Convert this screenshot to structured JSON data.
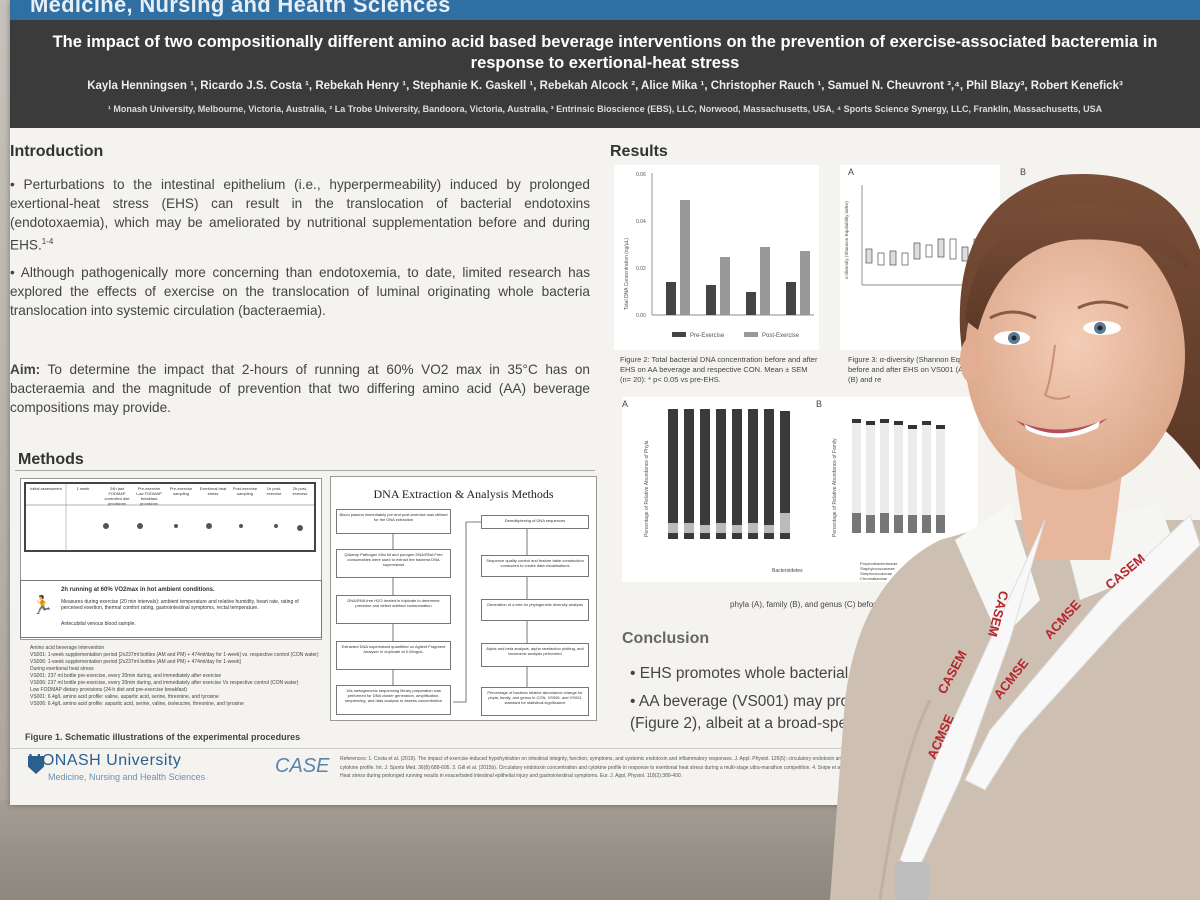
{
  "poster": {
    "department": "Medicine, Nursing and Health Sciences",
    "title": "The impact of two compositionally different amino acid based beverage interventions on the prevention of exercise-associated bacteremia in response to exertional-heat stress",
    "authors": "Kayla Henningsen ¹, Ricardo J.S. Costa ¹, Rebekah Henry ¹, Stephanie K. Gaskell ¹, Rebekah Alcock ², Alice Mika ¹, Christopher Rauch ¹, Samuel N. Cheuvront ³,⁴, Phil Blazy³, Robert Kenefick³",
    "affiliations": "¹ Monash University, Melbourne, Victoria, Australia, ² La Trobe University, Bandoora, Victoria, Australia, ³ Entrinsic Bioscience (EBS), LLC, Norwood, Massachusetts, USA, ⁴ Sports Science Synergy, LLC, Franklin, Massachusetts, USA",
    "introduction": {
      "heading": "Introduction",
      "bullet1": "• Perturbations to the intestinal epithelium (i.e., hyperpermeability) induced by prolonged exertional-heat stress (EHS) can result in the translocation of bacterial endotoxins (endotoxaemia), which may be ameliorated by nutritional supplementation before and during EHS.",
      "bullet1_ref": "1-4",
      "bullet2": "• Although pathogenically more concerning than endotoxemia, to date, limited research has explored the effects of exercise on the translocation of luminal originating whole bacteria translocation into systemic circulation (bacteraemia).",
      "aim_label": "Aim:",
      "aim_text": " To determine the impact that 2-hours of running at 60% VO2 max in 35°C has on bacteraemia and the magnitude of prevention that two differing amino acid (AA) beverage compositions may provide."
    },
    "methods": {
      "heading": "Methods",
      "schematic_headers": [
        "Initial assessment",
        "1 week",
        "24h last FODMAP controlled diet provisions",
        "Pre-exercise Low FODMAP breakfast provisions",
        "Pre-exercise sampling",
        "Exertional heat stress",
        "Post-exercise sampling",
        "1h post-exercise",
        "2h post-exercise"
      ],
      "run_text": "2h running at 60% VO2max in hot ambient conditions.",
      "run_measures": "Measures during exercise (20 min intervals): ambient temperature and relative humidity, heart rate, rating of perceived exertion, thermal comfort rating, gastrointestinal symptoms, rectal temperature.",
      "run_blood": "Antecubital venous blood sample.",
      "beverage_lines": [
        "Amino acid beverage intervention",
        "VS001: 1-week supplementation period [2x237ml bottles (AM and PM) + 474ml/day for 1-week]  vs. respective control (CON water)",
        "VS006: 1-week supplementation period [2x237ml bottles (AM and PM) + 474ml/day for 1-week]",
        "During exertional heat stress",
        "VS001: 237 ml bottle pre-exercise, every 20min during, and immediately after exercise",
        "VS006: 237 ml bottle pre-exercise, every 20min during, and immediately after exercise  Vs respective control (CON water)",
        "Low FODMAP dietary provisions (24-h diet and pre-exercise breakfast)",
        "VS001: 6.4g/L amino acid profile: valine, aspartic acid, serine, threonine, and tyrosine",
        "VS006: 6.4g/L amino acid profile: aspartic acid, serine, valine, isoleucine, threonine, and tyrosine"
      ],
      "figure1_caption": "Figure 1. Schematic illustrations of the experimental procedures"
    },
    "dna_box": {
      "title": "DNA Extraction & Analysis Methods",
      "left_steps": [
        "Blood plasma immediately pre and post-exercise was utilised for the DNA extraction",
        "QIAamp Pathogen Mini kit and purogen DNA/RNA Free consumables were used to extract the bacteria DNA supernatant",
        "DNA/RNA free H2O treated in triplicate to determine precision and detect artefact contamination",
        "Extracted DNA supernatant quantified on Agilent Fragment Analyser in duplicate at 0.06ng/uL",
        "16s metagenomic sequencing library preparation was performed for DNA cluster generation, amplification, sequencing, and data analysis to assess concentration"
      ],
      "right_steps": [
        "Demultiplexing of DNA sequences",
        "Sequence quality control and feature table construction conducted to create data visualisations",
        "Generation of a tree for phylogenetic diversity analysis",
        "Alpha and beta analysis, alpha rarefaction plotting, and taxonomic analysis performed",
        "Percentage of bacteria relative abundance change for phyla, family, and genus in CON, VS006, and VS001 standard for statistical significance"
      ]
    },
    "results": {
      "heading": "Results",
      "fig2_ylabel": "Total DNA Concentration (ng/µL)",
      "fig2_yticks": [
        "0.06",
        "0.04",
        "0.02",
        "0.00"
      ],
      "fig2_legend": [
        "Pre-Exercise",
        "Post-Exercise"
      ],
      "fig2_caption": "Figure 2: Total bacterial DNA concentration before and after EHS on AA beverage and respective CON. Mean ± SEM (n= 20): * p< 0.05 vs pre-EHS.",
      "fig3_caption": "Figure 3: α-diversity (Shannon Equitability) before and after EHS on VS001 (A) and VS006 (B) and re",
      "fig3_label_a": "A",
      "fig3_label_b": "B",
      "fig3_ylabel": "α-diversity (Shannon Equitability index)",
      "fig3_yticks": [
        "0.4",
        "0.3",
        "0.2",
        "0.1",
        "0.0"
      ],
      "fig4_label_a": "A",
      "fig4_label_b": "B",
      "fig4_ylabel_a": "Percentage of Relative Abundance of Phyla",
      "fig4_ylabel_b": "Percentage of Relative Abundance of Family",
      "fig4_legend_a": [
        "Bacteroidetes"
      ],
      "fig4_legend_b": [
        "Propionibacteriaceae",
        "Staphylococcaceae",
        "Streptococcaceae",
        "Chromatiaceae",
        "Moraxellaceae"
      ],
      "fig4_caption": "phyla (A), family (B), and genus (C) before and afte"
    },
    "conclusion": {
      "heading": "Conclusion",
      "bullet1": "• EHS promotes whole bacterial translocati",
      "bullet2a": "• AA beverage (VS001) may provide",
      "bullet2b": "(Figure 2), albeit at a broad-spectrum"
    },
    "footer": {
      "university": "MONASH University",
      "faculty": "Medicine, Nursing and Health Sciences",
      "partner": "CASE",
      "references": "References: 1. Costa et al. (2019). The impact of exercise-induced hypohydration on intestinal integrity, function, symptoms, and systemic endotoxin and inflammatory responses. J. Appl. Physiol. 126(5): circulatory endotoxin and cytokine profile. Int. J. Sports Med. 36(8):688-695. 3. Gill et al. (2015b). Circulatory endotoxin concentration and cytokine profile in response to exertional heat stress during a multi-stage ultra-marathon competition. 4. Snipe et al. (2018). Heat stress during prolonged running results in exacerbated intestinal epithelial injury and gastrointestinal symptoms. Eur. J. Appl. Physiol. 118(2):389-400."
    },
    "lanyard_text": [
      "CASEM",
      "ACMSE",
      "CASEM",
      "ACMSE",
      "CASEM",
      "ACMSE"
    ]
  }
}
